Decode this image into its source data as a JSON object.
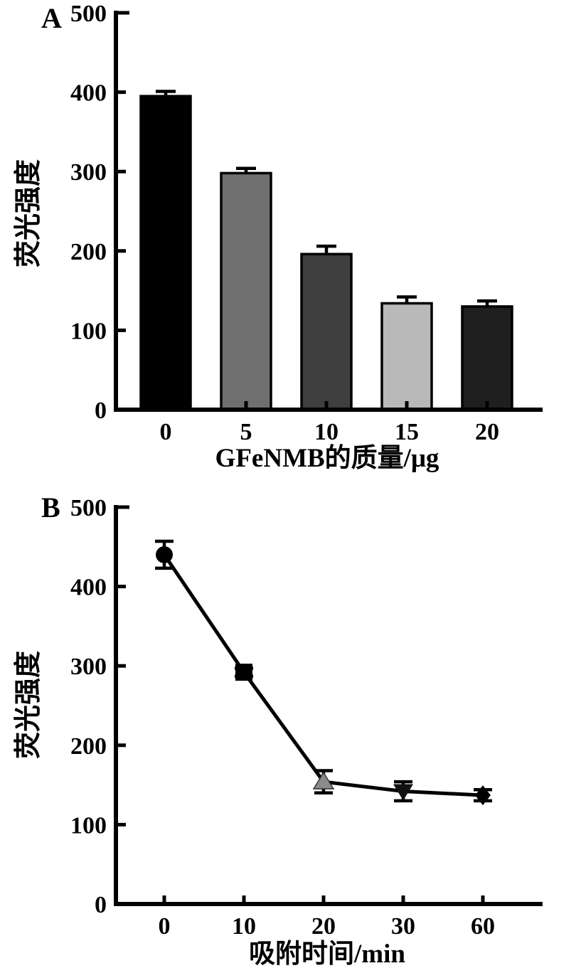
{
  "figure": {
    "background": "#ffffff",
    "axis_color": "#000000",
    "text_color": "#000000"
  },
  "chart_data": [
    {
      "panel": "A",
      "type": "bar",
      "xlabel": "GFeNMB的质量/μg",
      "ylabel": "荧光强度",
      "categories": [
        "0",
        "5",
        "10",
        "15",
        "20"
      ],
      "values": [
        395,
        298,
        196,
        134,
        130
      ],
      "errors": [
        6,
        6,
        10,
        8,
        7
      ],
      "bar_colors": [
        "#000000",
        "#6f6f6f",
        "#3f3f3f",
        "#b9b9b9",
        "#1f1f1f"
      ],
      "bar_outline": "#000000",
      "ylim": [
        0,
        500
      ],
      "yticks": [
        0,
        100,
        200,
        300,
        400,
        500
      ],
      "grid": "off",
      "legend": "none"
    },
    {
      "panel": "B",
      "type": "line",
      "xlabel": "吸附时间/min",
      "ylabel": "荧光强度",
      "categories": [
        "0",
        "10",
        "20",
        "30",
        "60"
      ],
      "values": [
        440,
        292,
        154,
        142,
        137
      ],
      "errors": [
        17,
        5,
        14,
        12,
        7
      ],
      "markers": [
        "circle",
        "square",
        "triangle-up",
        "triangle-down",
        "diamond"
      ],
      "marker_colors": [
        "#000000",
        "#000000",
        "#8a8a8a",
        "#111111",
        "#000000"
      ],
      "line_color": "#000000",
      "ylim": [
        0,
        500
      ],
      "yticks": [
        0,
        100,
        200,
        300,
        400,
        500
      ],
      "grid": "off",
      "legend": "none"
    }
  ]
}
